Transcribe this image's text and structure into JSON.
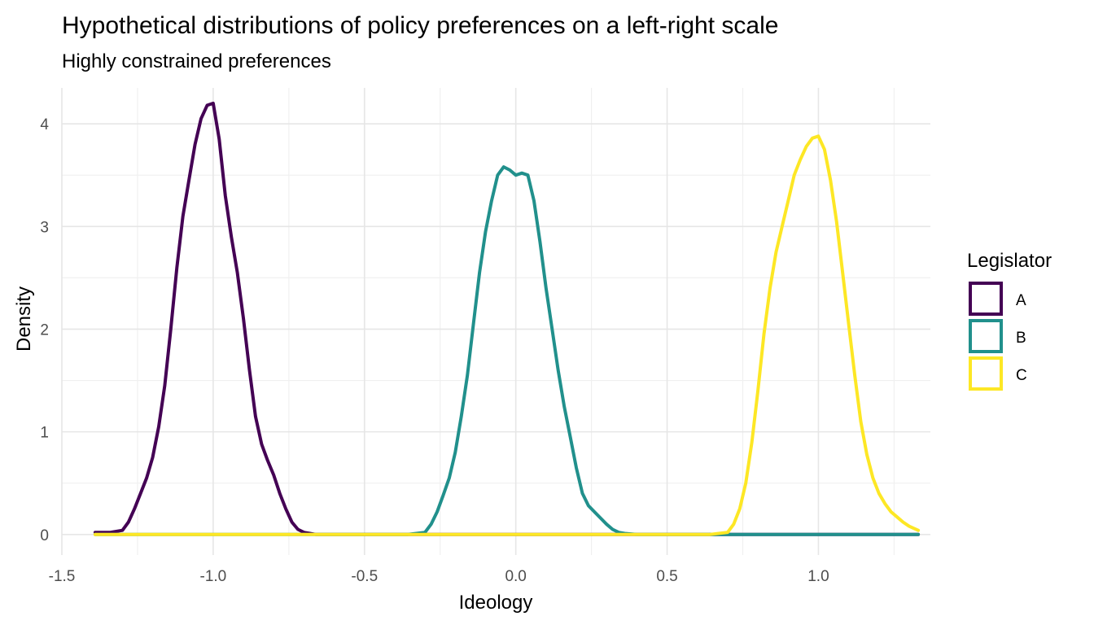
{
  "chart_data": {
    "type": "line",
    "title": "Hypothetical distributions of policy preferences on a left-right scale",
    "subtitle": "Highly constrained preferences",
    "xlabel": "Ideology",
    "ylabel": "Density",
    "xlim": [
      -1.5,
      1.37
    ],
    "ylim": [
      -0.2,
      4.35
    ],
    "x_ticks": [
      -1.5,
      -1.0,
      -0.5,
      0.0,
      0.5,
      1.0
    ],
    "x_tick_labels": [
      "-1.5",
      "-1.0",
      "-0.5",
      "0.0",
      "0.5",
      "1.0"
    ],
    "y_ticks": [
      0,
      1,
      2,
      3,
      4
    ],
    "y_tick_labels": [
      "0",
      "1",
      "2",
      "3",
      "4"
    ],
    "x_minor_ticks": [
      -1.25,
      -0.75,
      -0.25,
      0.25,
      0.75,
      1.25
    ],
    "y_minor_ticks": [
      0.5,
      1.5,
      2.5,
      3.5
    ],
    "grid": true,
    "legend": {
      "title": "Legislator",
      "position": "right"
    },
    "series": [
      {
        "name": "A",
        "color": "#440154",
        "x": [
          -1.39,
          -1.34,
          -1.3,
          -1.28,
          -1.26,
          -1.24,
          -1.22,
          -1.2,
          -1.18,
          -1.16,
          -1.14,
          -1.12,
          -1.1,
          -1.08,
          -1.06,
          -1.04,
          -1.02,
          -1.0,
          -0.98,
          -0.96,
          -0.94,
          -0.92,
          -0.9,
          -0.88,
          -0.86,
          -0.84,
          -0.82,
          -0.8,
          -0.78,
          -0.76,
          -0.74,
          -0.72,
          -0.7,
          -0.68,
          -0.66,
          1.33
        ],
        "y": [
          0.02,
          0.02,
          0.04,
          0.12,
          0.25,
          0.4,
          0.55,
          0.75,
          1.05,
          1.45,
          2.0,
          2.6,
          3.1,
          3.45,
          3.8,
          4.05,
          4.18,
          4.2,
          3.85,
          3.3,
          2.9,
          2.55,
          2.1,
          1.6,
          1.15,
          0.88,
          0.72,
          0.58,
          0.4,
          0.25,
          0.12,
          0.05,
          0.02,
          0.01,
          0.0,
          0.0
        ]
      },
      {
        "name": "B",
        "color": "#21908C",
        "x": [
          -1.39,
          -0.36,
          -0.3,
          -0.28,
          -0.26,
          -0.24,
          -0.22,
          -0.2,
          -0.18,
          -0.16,
          -0.14,
          -0.12,
          -0.1,
          -0.08,
          -0.06,
          -0.04,
          -0.02,
          0.0,
          0.02,
          0.04,
          0.06,
          0.08,
          0.1,
          0.12,
          0.14,
          0.16,
          0.18,
          0.2,
          0.22,
          0.24,
          0.26,
          0.28,
          0.3,
          0.32,
          0.34,
          0.36,
          0.4,
          1.33
        ],
        "y": [
          0.0,
          0.0,
          0.02,
          0.1,
          0.22,
          0.38,
          0.55,
          0.8,
          1.15,
          1.55,
          2.05,
          2.55,
          2.95,
          3.25,
          3.5,
          3.58,
          3.55,
          3.5,
          3.52,
          3.5,
          3.25,
          2.85,
          2.4,
          2.0,
          1.6,
          1.25,
          0.95,
          0.65,
          0.4,
          0.28,
          0.22,
          0.16,
          0.1,
          0.05,
          0.02,
          0.01,
          0.0,
          0.0
        ]
      },
      {
        "name": "C",
        "color": "#FDE725",
        "x": [
          -1.39,
          0.64,
          0.7,
          0.72,
          0.74,
          0.76,
          0.78,
          0.8,
          0.82,
          0.84,
          0.86,
          0.88,
          0.9,
          0.92,
          0.94,
          0.96,
          0.98,
          1.0,
          1.02,
          1.04,
          1.06,
          1.08,
          1.1,
          1.12,
          1.14,
          1.16,
          1.18,
          1.2,
          1.22,
          1.24,
          1.26,
          1.28,
          1.3,
          1.33
        ],
        "y": [
          0.0,
          0.0,
          0.02,
          0.1,
          0.25,
          0.5,
          0.9,
          1.4,
          1.95,
          2.4,
          2.75,
          3.0,
          3.25,
          3.5,
          3.65,
          3.78,
          3.86,
          3.88,
          3.75,
          3.45,
          3.05,
          2.55,
          2.05,
          1.55,
          1.1,
          0.78,
          0.55,
          0.4,
          0.3,
          0.22,
          0.17,
          0.12,
          0.08,
          0.04
        ]
      }
    ]
  }
}
